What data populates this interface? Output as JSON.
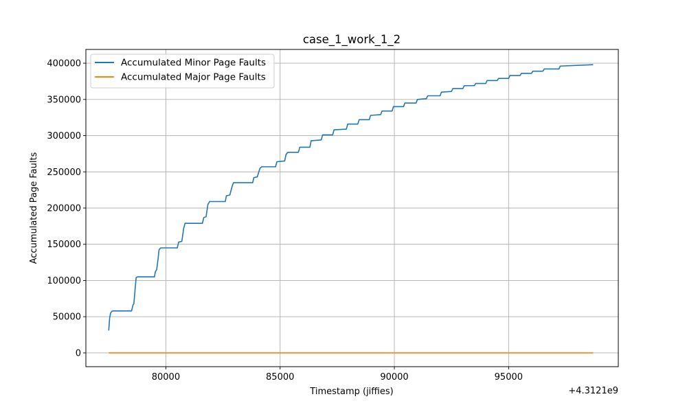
{
  "chart_data": {
    "type": "line",
    "title": "case_1_work_1_2",
    "xlabel": "Timestamp (jiffies)",
    "ylabel": "Accumulated Page Faults",
    "x_offset_label": "+4.3121e9",
    "xlim": [
      76500,
      99800
    ],
    "ylim": [
      -19000,
      419000
    ],
    "x_ticks": [
      80000,
      85000,
      90000,
      95000
    ],
    "x_tick_labels": [
      "80000",
      "85000",
      "90000",
      "95000"
    ],
    "y_ticks": [
      0,
      50000,
      100000,
      150000,
      200000,
      250000,
      300000,
      350000,
      400000
    ],
    "y_tick_labels": [
      "0",
      "50000",
      "100000",
      "150000",
      "200000",
      "250000",
      "300000",
      "350000",
      "400000"
    ],
    "grid": true,
    "legend_position": "top-left",
    "series": [
      {
        "name": "Accumulated Minor Page Faults",
        "color": "#1f77b4",
        "x": [
          77500,
          77540,
          77580,
          77640,
          77700,
          78500,
          78560,
          78600,
          78660,
          78700,
          78760,
          79500,
          79540,
          79600,
          79660,
          79700,
          79740,
          79780,
          79840,
          80000,
          80500,
          80560,
          80700,
          80780,
          80840,
          81000,
          81600,
          81660,
          81760,
          81840,
          81920,
          82000,
          82600,
          82650,
          82800,
          82900,
          82960,
          83000,
          83800,
          83850,
          84000,
          84120,
          84200,
          84800,
          84860,
          85200,
          85260,
          85340,
          85800,
          85860,
          86300,
          86360,
          86800,
          86860,
          87300,
          87360,
          87900,
          87960,
          88400,
          88460,
          88900,
          88960,
          89400,
          89460,
          89900,
          89960,
          90400,
          90460,
          90950,
          91010,
          91400,
          91460,
          92000,
          92060,
          92500,
          92560,
          93000,
          93060,
          93500,
          93560,
          94000,
          94060,
          94500,
          94560,
          95000,
          95060,
          95500,
          95560,
          96000,
          96060,
          96500,
          96560,
          97200,
          97260,
          98700
        ],
        "y": [
          31000,
          48000,
          55000,
          57500,
          58000,
          58000,
          66000,
          68000,
          90000,
          104000,
          105000,
          105000,
          112000,
          115000,
          130000,
          142000,
          144000,
          145000,
          145000,
          145000,
          145000,
          153000,
          154000,
          172000,
          179000,
          179000,
          179000,
          187000,
          188000,
          205000,
          209000,
          209000,
          209000,
          217000,
          218000,
          230000,
          235000,
          235000,
          235000,
          242000,
          243000,
          255000,
          257000,
          257000,
          264000,
          265000,
          274000,
          277000,
          277000,
          284000,
          284000,
          293000,
          294000,
          301000,
          301000,
          308000,
          309000,
          316000,
          316000,
          322000,
          322000,
          328000,
          329000,
          334000,
          334000,
          340000,
          340000,
          345000,
          345000,
          350000,
          351000,
          355000,
          355000,
          360000,
          361000,
          365000,
          365000,
          369000,
          369000,
          372000,
          372000,
          376000,
          376000,
          379000,
          379000,
          383000,
          383000,
          386000,
          386000,
          389000,
          389000,
          392000,
          392000,
          396000,
          398000
        ]
      },
      {
        "name": "Accumulated Major Page Faults",
        "color": "#ff7f0e",
        "x": [
          77500,
          98700
        ],
        "y": [
          0,
          0
        ]
      }
    ]
  }
}
